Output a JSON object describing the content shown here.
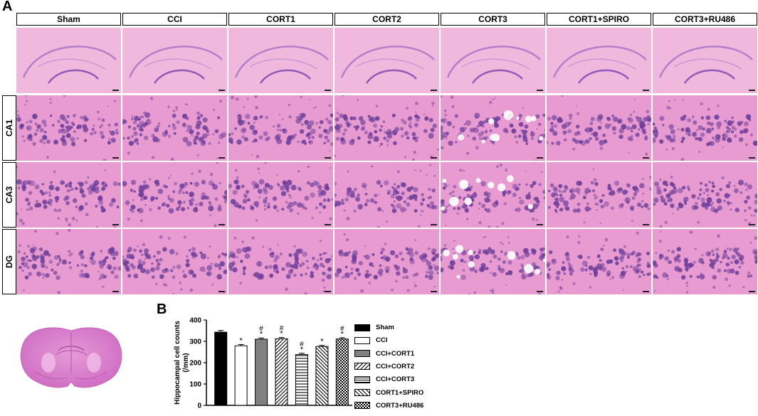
{
  "panel_a_label": "A",
  "panel_b_label": "B",
  "columns": [
    "Sham",
    "CCI",
    "CORT1",
    "CORT2",
    "CORT3",
    "CORT1+SPIRO",
    "CORT3+RU486"
  ],
  "rows": [
    "CA1",
    "CA3",
    "DG"
  ],
  "colors": {
    "stain_base": "#e79bd0",
    "stain_light": "#f0b8dd",
    "nuclei": "#6e3f9a",
    "vacuole": "#ffffff",
    "brain_section": "#d97bc9"
  },
  "chart_data": {
    "type": "bar",
    "ylabel": "Hippocampal cell counts (/mm)",
    "ylim": [
      0,
      400
    ],
    "yticks": [
      "0",
      "100",
      "200",
      "300",
      "400"
    ],
    "categories": [
      "Sham",
      "CCI",
      "CCI+CORT1",
      "CCI+CORT2",
      "CCI+CORT3",
      "CORT1+SPIRO",
      "CORT3+RU486"
    ],
    "values": [
      343,
      279,
      310,
      312,
      238,
      276,
      311
    ],
    "errors": [
      8,
      6,
      6,
      6,
      6,
      5,
      6
    ],
    "annotations": [
      "",
      "*",
      "#\n*",
      "#\n*",
      "#\n*",
      "*",
      "#\n*"
    ],
    "patterns": [
      "solid-black",
      "white",
      "solid-gray",
      "diagonal-right",
      "horizontal",
      "diagonal-left",
      "checker"
    ],
    "legend": [
      "Sham",
      "CCI",
      "CCI+CORT1",
      "CCI+CORT2",
      "CCI+CORT3",
      "CORT1+SPIRO",
      "CORT3+RU486"
    ]
  }
}
